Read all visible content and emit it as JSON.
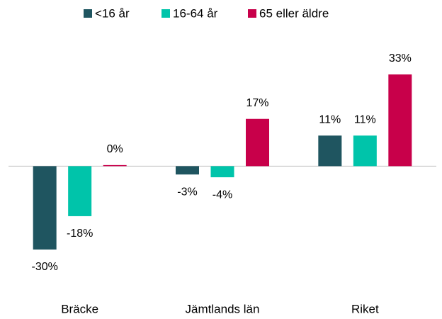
{
  "chart_data": {
    "type": "bar",
    "categories": [
      "Bräcke",
      "Jämtlands län",
      "Riket"
    ],
    "series": [
      {
        "name": "<16 år",
        "color": "#1f5560",
        "values": [
          -30,
          -3,
          11
        ],
        "value_labels": [
          "-30%",
          "-3%",
          "11%"
        ]
      },
      {
        "name": "16-64 år",
        "color": "#00c4aa",
        "values": [
          -18,
          -4,
          11
        ],
        "value_labels": [
          "-18%",
          "-4%",
          "11%"
        ]
      },
      {
        "name": "65 eller äldre",
        "color": "#c8004a",
        "values": [
          0,
          17,
          33
        ],
        "value_labels": [
          "0%",
          "17%",
          "33%"
        ]
      }
    ],
    "legend": "top"
  }
}
